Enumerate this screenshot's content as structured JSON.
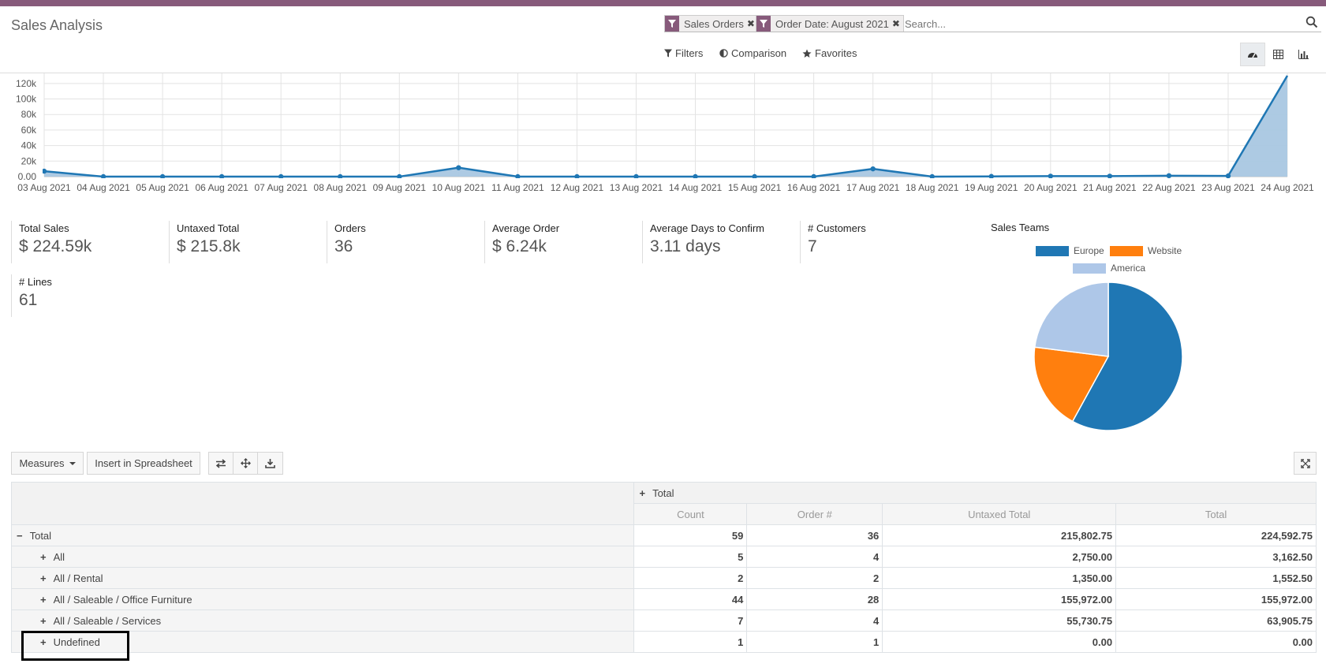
{
  "header": {
    "title": "Sales Analysis",
    "facets": [
      {
        "label": "Sales Orders"
      },
      {
        "label": "Order Date: August 2021"
      }
    ],
    "search_placeholder": "Search...",
    "controls": {
      "filters": "Filters",
      "comparison": "Comparison",
      "favorites": "Favorites"
    }
  },
  "colors": {
    "brand": "#875a7b",
    "line": "#1f77b4",
    "area": "#a9c7e1",
    "europe": "#1f77b4",
    "website": "#ff7f0e",
    "america": "#aec7e8"
  },
  "chart_data": [
    {
      "type": "area",
      "x": [
        "03 Aug 2021",
        "04 Aug 2021",
        "05 Aug 2021",
        "06 Aug 2021",
        "07 Aug 2021",
        "08 Aug 2021",
        "09 Aug 2021",
        "10 Aug 2021",
        "11 Aug 2021",
        "12 Aug 2021",
        "13 Aug 2021",
        "14 Aug 2021",
        "15 Aug 2021",
        "16 Aug 2021",
        "17 Aug 2021",
        "18 Aug 2021",
        "19 Aug 2021",
        "20 Aug 2021",
        "21 Aug 2021",
        "22 Aug 2021",
        "23 Aug 2021",
        "24 Aug 2021"
      ],
      "values": [
        7000,
        0,
        0,
        0,
        0,
        0,
        0,
        11500,
        0,
        0,
        0,
        0,
        0,
        0,
        10000,
        0,
        300,
        600,
        600,
        1200,
        900,
        130000
      ],
      "yticks": [
        "0.00",
        "20k",
        "40k",
        "60k",
        "80k",
        "100k",
        "120k"
      ],
      "ylim": [
        0,
        130000
      ],
      "grid": true
    },
    {
      "type": "pie",
      "title": "Sales Teams",
      "legend": [
        "Europe",
        "Website",
        "America"
      ],
      "values": [
        58,
        19,
        23
      ]
    }
  ],
  "kpis": [
    {
      "label": "Total Sales",
      "value": "$ 224.59k"
    },
    {
      "label": "Untaxed Total",
      "value": "$ 215.8k"
    },
    {
      "label": "Orders",
      "value": "36"
    },
    {
      "label": "Average Order",
      "value": "$ 6.24k"
    },
    {
      "label": "Average Days to Confirm",
      "value": "3.11 days"
    },
    {
      "label": "# Customers",
      "value": "7"
    },
    {
      "label": "# Lines",
      "value": "61"
    }
  ],
  "toolbar": {
    "measures": "Measures",
    "insert": "Insert in Spreadsheet"
  },
  "pivot": {
    "col_group": "Total",
    "columns": [
      "Count",
      "Order #",
      "Untaxed Total",
      "Total"
    ],
    "rows": [
      {
        "label": "Total",
        "values": [
          "59",
          "36",
          "215,802.75",
          "224,592.75"
        ]
      },
      {
        "label": "All",
        "values": [
          "5",
          "4",
          "2,750.00",
          "3,162.50"
        ]
      },
      {
        "label": "All / Rental",
        "values": [
          "2",
          "2",
          "1,350.00",
          "1,552.50"
        ]
      },
      {
        "label": "All / Saleable / Office Furniture",
        "values": [
          "44",
          "28",
          "155,972.00",
          "155,972.00"
        ]
      },
      {
        "label": "All / Saleable / Services",
        "values": [
          "7",
          "4",
          "55,730.75",
          "63,905.75"
        ]
      },
      {
        "label": "Undefined",
        "values": [
          "1",
          "1",
          "0.00",
          "0.00"
        ]
      }
    ]
  }
}
